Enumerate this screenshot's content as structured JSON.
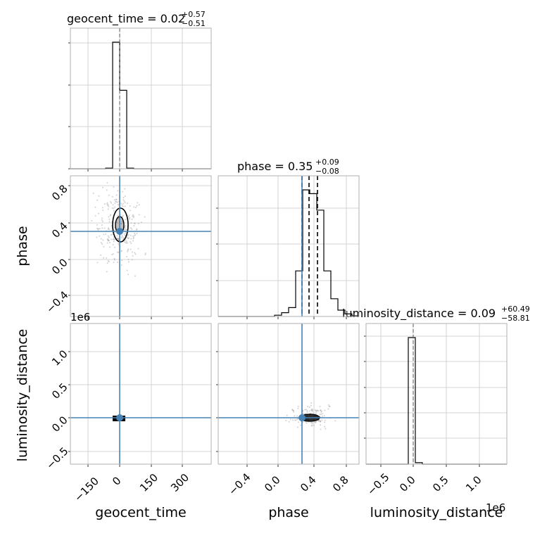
{
  "figure": {
    "title_geocent": "geocent_time = 0.02",
    "title_geocent_sup": "+0.57",
    "title_geocent_sub": "−0.51",
    "title_phase": "phase = 0.35",
    "title_phase_sup": "+0.09",
    "title_phase_sub": "−0.08",
    "title_lum": "luminosity_distance = 0.09",
    "title_lum_sup": "+60.49",
    "title_lum_sub": "−58.81",
    "xlabel_geocent": "geocent_time",
    "xlabel_phase": "phase",
    "xlabel_lum": "luminosity_distance",
    "ylabel_phase": "phase",
    "ylabel_lum": "luminosity_distance",
    "offset_y_lum": "1e6",
    "offset_x_lum": "1e6",
    "ticks_geocent": [
      "−150",
      "0",
      "150",
      "300"
    ],
    "ticks_phase_x": [
      "−0.4",
      "0.0",
      "0.4",
      "0.8"
    ],
    "ticks_phase_y": [
      "0.8",
      "0.4",
      "0.0",
      "−0.4"
    ],
    "ticks_lum_y": [
      "1.0",
      "0.5",
      "0.0",
      "−0.5"
    ],
    "ticks_lum_x": [
      "−0.5",
      "0.0",
      "0.5",
      "1.0"
    ]
  },
  "chart_data": {
    "type": "corner",
    "parameters": [
      "geocent_time",
      "phase",
      "luminosity_distance"
    ],
    "truth": {
      "geocent_time": 0.0,
      "phase": 0.28,
      "luminosity_distance": 0.0
    },
    "ranges": {
      "geocent_time": [
        -220,
        430
      ],
      "phase": [
        -0.65,
        0.9
      ],
      "luminosity_distance": [
        -0.72,
        1.42
      ]
    },
    "histograms": {
      "geocent_time": {
        "edges": [
          -220,
          -187.5,
          -155,
          -122.5,
          -90,
          -57.5,
          -25,
          7.5,
          40,
          72.5,
          105,
          137.5,
          170,
          202.5,
          235,
          267.5,
          300,
          332.5,
          365,
          397.5,
          430
        ],
        "counts": [
          0,
          0,
          0,
          0,
          0,
          0.005,
          1.0,
          0.62,
          0.005,
          0,
          0,
          0,
          0,
          0,
          0,
          0,
          0,
          0,
          0,
          0
        ]
      },
      "phase": {
        "edges": [
          -0.65,
          -0.5725,
          -0.495,
          -0.4175,
          -0.34,
          -0.2625,
          -0.185,
          -0.1075,
          -0.03,
          0.0475,
          0.125,
          0.2025,
          0.28,
          0.3575,
          0.435,
          0.5125,
          0.59,
          0.6675,
          0.745,
          0.8225,
          0.9
        ],
        "counts": [
          0,
          0,
          0,
          0,
          0,
          0,
          0,
          0,
          0.01,
          0.03,
          0.07,
          0.36,
          1.0,
          0.97,
          0.84,
          0.36,
          0.14,
          0.05,
          0.02,
          0.005
        ]
      },
      "luminosity_distance": {
        "edges": [
          -0.72,
          -0.613,
          -0.506,
          -0.399,
          -0.292,
          -0.185,
          -0.078,
          0.029,
          0.136,
          0.243,
          0.35,
          0.457,
          0.564,
          0.671,
          0.778,
          0.885,
          0.992,
          1.099,
          1.206,
          1.313,
          1.42
        ],
        "counts": [
          0,
          0,
          0,
          0,
          0,
          0,
          1.0,
          0.012,
          0,
          0,
          0,
          0,
          0,
          0,
          0,
          0,
          0,
          0,
          0,
          0
        ]
      }
    },
    "quantiles": {
      "geocent_time": [
        -0.49,
        0.02,
        0.59
      ],
      "phase": [
        0.27,
        0.35,
        0.44
      ],
      "luminosity_distance": [
        -58.72,
        0.09,
        60.58
      ]
    }
  }
}
